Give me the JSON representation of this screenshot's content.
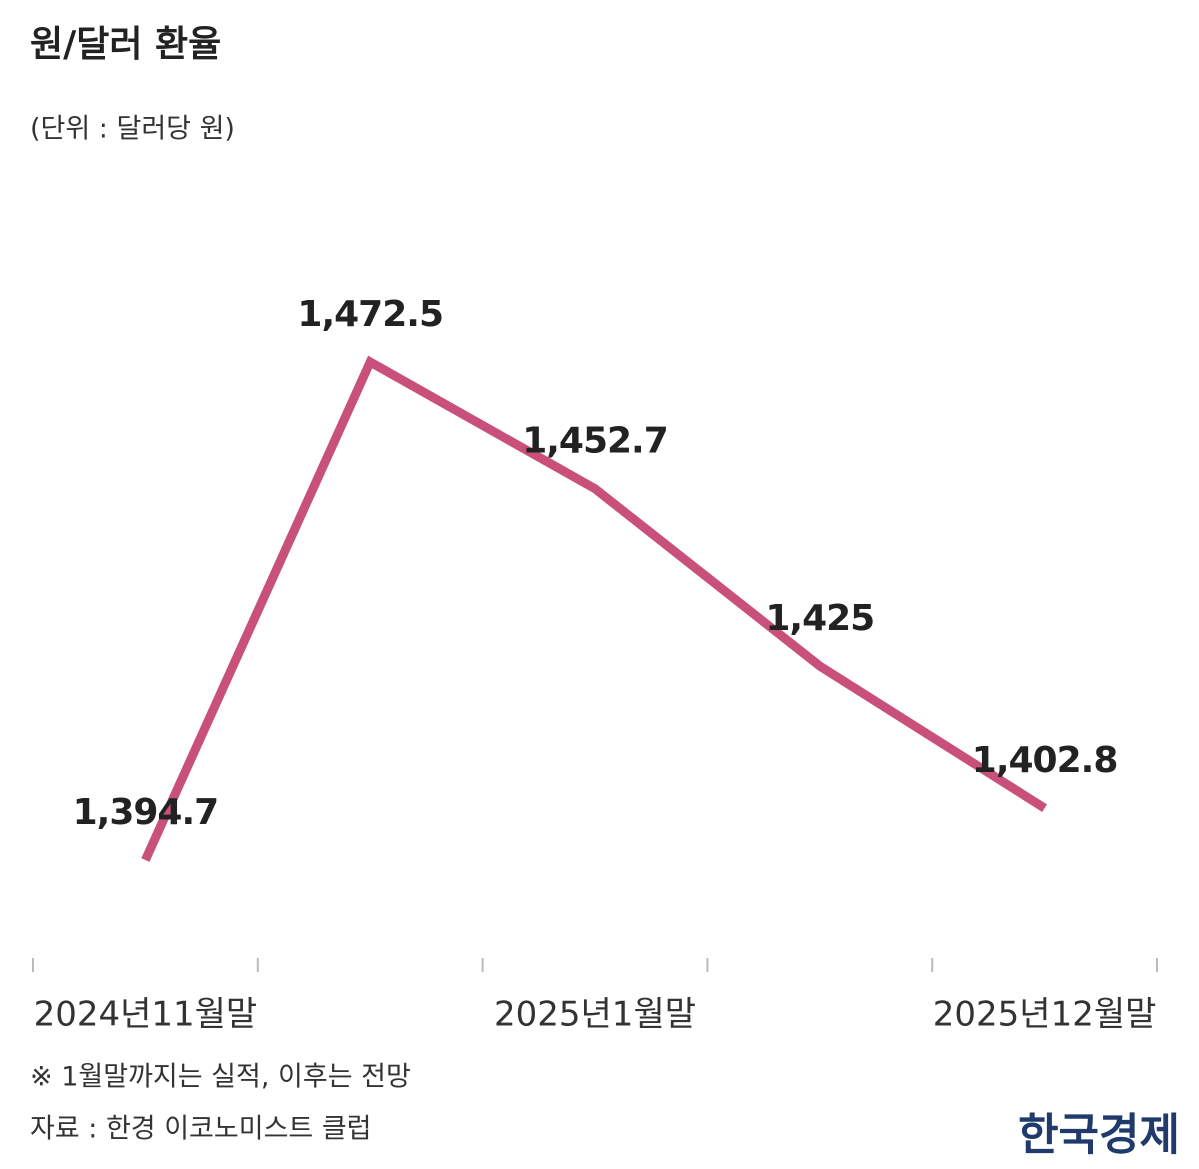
{
  "chart_data": {
    "type": "line",
    "title": "원/달러 환율",
    "subtitle": "(단위 : 달러당 원)",
    "categories": [
      "2024년11월말",
      null,
      "2025년1월말",
      null,
      "2025년12월말"
    ],
    "values": [
      1394.7,
      1472.5,
      1452.7,
      1425,
      1402.8
    ],
    "value_labels": [
      "1,394.7",
      "1,472.5",
      "1,452.7",
      "1,425",
      "1,402.8"
    ],
    "color": "#c9507a",
    "note": "※ 1월말까지는 실적, 이후는 전망",
    "source": "자료 : 한경 이코노미스트 클럽",
    "logo": "한국경제"
  }
}
